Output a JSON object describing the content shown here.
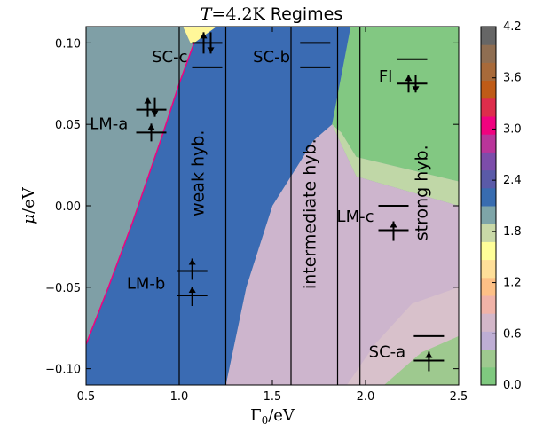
{
  "chart_data": {
    "type": "heatmap",
    "title": {
      "math": "T",
      "eq": "=4.2",
      "unit": "K",
      "word": "Regimes"
    },
    "xlabel": {
      "sym": "Γ",
      "sub": "0",
      "unit": "/eV"
    },
    "ylabel": {
      "sym": "μ",
      "unit": "/eV"
    },
    "xlim": [
      0.5,
      2.5
    ],
    "ylim": [
      -0.11,
      0.11
    ],
    "xticks": [
      {
        "value": 0.5,
        "label": "0.5"
      },
      {
        "value": 1.0,
        "label": "1.0"
      },
      {
        "value": 1.5,
        "label": "1.5"
      },
      {
        "value": 2.0,
        "label": "2.0"
      },
      {
        "value": 2.5,
        "label": "2.5"
      }
    ],
    "yticks": [
      {
        "value": 0.1,
        "label": "0.10"
      },
      {
        "value": 0.05,
        "label": "0.05"
      },
      {
        "value": 0.0,
        "label": "0.00"
      },
      {
        "value": -0.05,
        "label": "−0.05"
      },
      {
        "value": -0.1,
        "label": "−0.10"
      }
    ],
    "colorbar": {
      "range": [
        0.0,
        4.2
      ],
      "ticks": [
        {
          "value": 4.2,
          "label": "4.2"
        },
        {
          "value": 3.6,
          "label": "3.6"
        },
        {
          "value": 3.0,
          "label": "3.0"
        },
        {
          "value": 2.4,
          "label": "2.4"
        },
        {
          "value": 1.8,
          "label": "1.8"
        },
        {
          "value": 1.2,
          "label": "1.2"
        },
        {
          "value": 0.6,
          "label": "0.6"
        },
        {
          "value": 0.0,
          "label": "0.0"
        }
      ],
      "bands": [
        "#7fc97f",
        "#9ec98f",
        "#beaed4",
        "#d3b7c9",
        "#f0b3a8",
        "#fdc086",
        "#fedf99",
        "#ffff99",
        "#c9d9a7",
        "#7ea5a8",
        "#386cb0",
        "#5a5aa8",
        "#7c4daa",
        "#b9359a",
        "#f0027f",
        "#dd2d4b",
        "#bf5b17",
        "#a86a3a",
        "#8f6e52",
        "#666666"
      ]
    },
    "regions": {
      "teal": "#7f9fa6",
      "blue": "#3a6bb3",
      "green": "#82c882",
      "pink": "#cdb5cd",
      "yellow": "#fff799",
      "light_green": "#c0d7a7",
      "red_boundary": "#f0027f"
    },
    "vertical_lines": [
      1.0,
      1.25,
      1.6,
      1.85,
      1.97
    ],
    "annotations": [
      {
        "label": "SC-c",
        "x": 1.15,
        "y": 0.092
      },
      {
        "label": "SC-b",
        "x": 1.7,
        "y": 0.092
      },
      {
        "label": "FI",
        "x": 2.25,
        "y": 0.08
      },
      {
        "label": "LM-a",
        "x": 0.83,
        "y": 0.051
      },
      {
        "label": "LM-c",
        "x": 2.15,
        "y": -0.006
      },
      {
        "label": "LM-b",
        "x": 1.03,
        "y": -0.047
      },
      {
        "label": "SC-a",
        "x": 2.32,
        "y": -0.089
      }
    ],
    "rotated_labels": [
      {
        "label": "weak hyb.",
        "x": 1.13,
        "y": 0.02
      },
      {
        "label": "intermediate hyb.",
        "x": 1.73,
        "y": -0.005
      },
      {
        "label": "strong hyb.",
        "x": 2.33,
        "y": 0.008
      }
    ]
  }
}
